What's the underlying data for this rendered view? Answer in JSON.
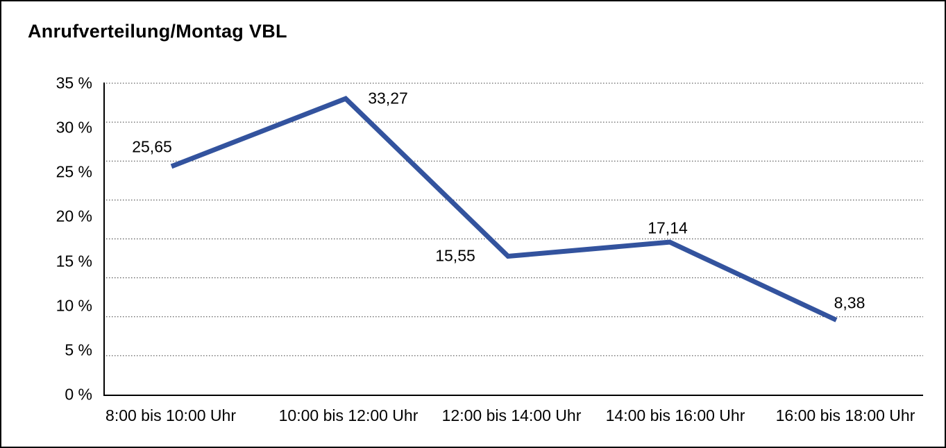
{
  "chart_data": {
    "type": "line",
    "title": "Anrufverteilung/Montag VBL",
    "categories": [
      "8:00 bis 10:00 Uhr",
      "10:00 bis 12:00 Uhr",
      "12:00 bis 14:00 Uhr",
      "14:00 bis 16:00 Uhr",
      "16:00 bis 18:00 Uhr"
    ],
    "values": [
      25.65,
      33.27,
      15.55,
      17.14,
      8.38
    ],
    "data_labels": [
      "25,65",
      "33,27",
      "15,55",
      "17,14",
      "8,38"
    ],
    "y_tick_labels": [
      "0 %",
      "5 %",
      "10 %",
      "15 %",
      "20 %",
      "25 %",
      "30 %",
      "35 %"
    ],
    "xlabel": "",
    "ylabel": "",
    "ylim": [
      0,
      35
    ],
    "y_step": 5,
    "grid": "horizontal-dotted",
    "gridline_count": 9,
    "legend": "none",
    "decimal_separator": ","
  },
  "colors": {
    "line": "#33539E",
    "axis": "#000000",
    "gridline": "#3a3a3a",
    "text": "#000000",
    "background": "#ffffff",
    "border": "#000000"
  }
}
